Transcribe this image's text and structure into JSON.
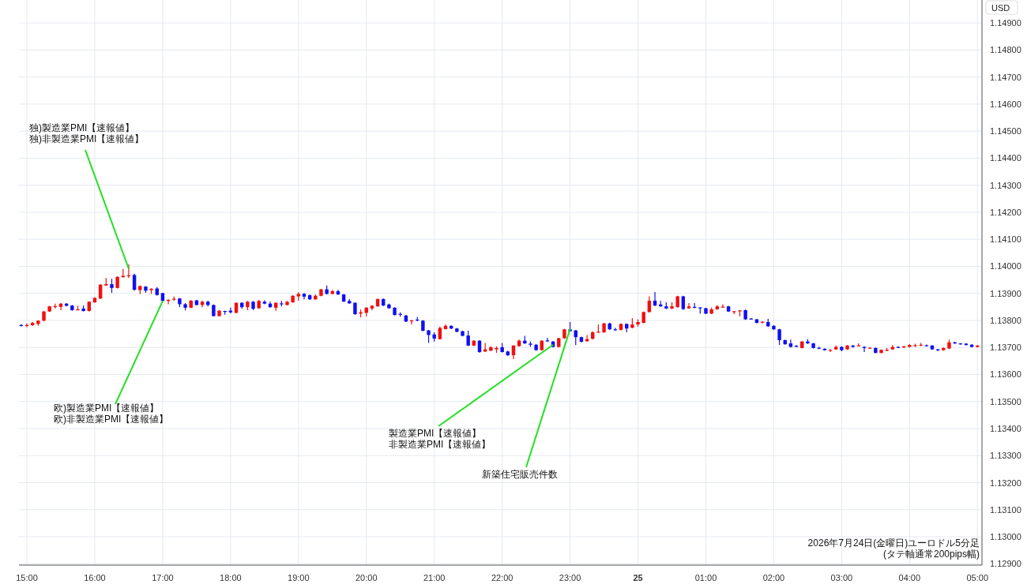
{
  "chart_data": {
    "type": "candlestick",
    "ylabel": "USD",
    "xlim": [
      "2026-07-24T14:53",
      "2026-07-25T05:04"
    ],
    "ylim": [
      1.12895,
      1.14985
    ],
    "xticks": [
      {
        "value": "2026-07-24T15:00",
        "label": "15:00"
      },
      {
        "value": "2026-07-24T16:00",
        "label": "16:00"
      },
      {
        "value": "2026-07-24T17:00",
        "label": "17:00"
      },
      {
        "value": "2026-07-24T18:00",
        "label": "18:00"
      },
      {
        "value": "2026-07-24T19:00",
        "label": "19:00"
      },
      {
        "value": "2026-07-24T20:00",
        "label": "20:00"
      },
      {
        "value": "2026-07-24T21:00",
        "label": "21:00"
      },
      {
        "value": "2026-07-24T22:00",
        "label": "22:00"
      },
      {
        "value": "2026-07-24T23:00",
        "label": "23:00"
      },
      {
        "value": "2026-07-25T00:00",
        "label": "25"
      },
      {
        "value": "2026-07-25T01:00",
        "label": "01:00"
      },
      {
        "value": "2026-07-25T02:00",
        "label": "02:00"
      },
      {
        "value": "2026-07-25T03:00",
        "label": "03:00"
      },
      {
        "value": "2026-07-25T04:00",
        "label": "04:00"
      },
      {
        "value": "2026-07-25T05:00",
        "label": "05:00"
      }
    ],
    "yticks": [
      {
        "value": 1.129,
        "label": "1.12900"
      },
      {
        "value": 1.13,
        "label": "1.13000"
      },
      {
        "value": 1.131,
        "label": "1.13100"
      },
      {
        "value": 1.132,
        "label": "1.13200"
      },
      {
        "value": 1.133,
        "label": "1.13300"
      },
      {
        "value": 1.134,
        "label": "1.13400"
      },
      {
        "value": 1.135,
        "label": "1.13500"
      },
      {
        "value": 1.136,
        "label": "1.13600"
      },
      {
        "value": 1.137,
        "label": "1.13700"
      },
      {
        "value": 1.138,
        "label": "1.13800"
      },
      {
        "value": 1.139,
        "label": "1.13900"
      },
      {
        "value": 1.14,
        "label": "1.14000"
      },
      {
        "value": 1.141,
        "label": "1.14100"
      },
      {
        "value": 1.142,
        "label": "1.14200"
      },
      {
        "value": 1.143,
        "label": "1.14300"
      },
      {
        "value": 1.144,
        "label": "1.14400"
      },
      {
        "value": 1.145,
        "label": "1.14500"
      },
      {
        "value": 1.146,
        "label": "1.14600"
      },
      {
        "value": 1.147,
        "label": "1.14700"
      },
      {
        "value": 1.148,
        "label": "1.14800"
      },
      {
        "value": 1.149,
        "label": "1.14900"
      }
    ],
    "grid": true,
    "annotations": [
      {
        "text": "独)製造業PMI【速報値】独)非製造業PMI【速報値】",
        "x": "2026-07-24T16:30",
        "y": 1.13991
      },
      {
        "text": "欧)製造業PMI【速報値】欧)非製造業PMI【速報値】",
        "x": "2026-07-24T17:00",
        "y": 1.13872
      },
      {
        "text": "製造業PMI【速報値】非製造業PMI【速報値】",
        "x": "2026-07-24T22:45",
        "y": 1.1371
      },
      {
        "text": "新築住宅販売件数",
        "x": "2026-07-24T23:00",
        "y": 1.13768
      },
      "2026年7月24日(金曜日)ユーロドル5分足\n(タテ軸通常200pips幅)"
    ],
    "x": [
      "2026-07-24T14:55",
      "2026-07-24T15:00",
      "2026-07-24T15:05",
      "2026-07-24T15:10",
      "2026-07-24T15:15",
      "2026-07-24T15:20",
      "2026-07-24T15:25",
      "2026-07-24T15:30",
      "2026-07-24T15:35",
      "2026-07-24T15:40",
      "2026-07-24T15:45",
      "2026-07-24T15:50",
      "2026-07-24T15:55",
      "2026-07-24T16:00",
      "2026-07-24T16:05",
      "2026-07-24T16:10",
      "2026-07-24T16:15",
      "2026-07-24T16:20",
      "2026-07-24T16:25",
      "2026-07-24T16:30",
      "2026-07-24T16:35",
      "2026-07-24T16:40",
      "2026-07-24T16:45",
      "2026-07-24T16:50",
      "2026-07-24T16:55",
      "2026-07-24T17:00",
      "2026-07-24T17:05",
      "2026-07-24T17:10",
      "2026-07-24T17:15",
      "2026-07-24T17:20",
      "2026-07-24T17:25",
      "2026-07-24T17:30",
      "2026-07-24T17:35",
      "2026-07-24T17:40",
      "2026-07-24T17:45",
      "2026-07-24T17:50",
      "2026-07-24T17:55",
      "2026-07-24T18:00",
      "2026-07-24T18:05",
      "2026-07-24T18:10",
      "2026-07-24T18:15",
      "2026-07-24T18:20",
      "2026-07-24T18:25",
      "2026-07-24T18:30",
      "2026-07-24T18:35",
      "2026-07-24T18:40",
      "2026-07-24T18:45",
      "2026-07-24T18:50",
      "2026-07-24T18:55",
      "2026-07-24T19:00",
      "2026-07-24T19:05",
      "2026-07-24T19:10",
      "2026-07-24T19:15",
      "2026-07-24T19:20",
      "2026-07-24T19:25",
      "2026-07-24T19:30",
      "2026-07-24T19:35",
      "2026-07-24T19:40",
      "2026-07-24T19:45",
      "2026-07-24T19:50",
      "2026-07-24T19:55",
      "2026-07-24T20:00",
      "2026-07-24T20:05",
      "2026-07-24T20:10",
      "2026-07-24T20:15",
      "2026-07-24T20:20",
      "2026-07-24T20:25",
      "2026-07-24T20:30",
      "2026-07-24T20:35",
      "2026-07-24T20:40",
      "2026-07-24T20:45",
      "2026-07-24T20:50",
      "2026-07-24T20:55",
      "2026-07-24T21:00",
      "2026-07-24T21:05",
      "2026-07-24T21:10",
      "2026-07-24T21:15",
      "2026-07-24T21:20",
      "2026-07-24T21:25",
      "2026-07-24T21:30",
      "2026-07-24T21:35",
      "2026-07-24T21:40",
      "2026-07-24T21:45",
      "2026-07-24T21:50",
      "2026-07-24T21:55",
      "2026-07-24T22:00",
      "2026-07-24T22:05",
      "2026-07-24T22:10",
      "2026-07-24T22:15",
      "2026-07-24T22:20",
      "2026-07-24T22:25",
      "2026-07-24T22:30",
      "2026-07-24T22:35",
      "2026-07-24T22:40",
      "2026-07-24T22:45",
      "2026-07-24T22:50",
      "2026-07-24T22:55",
      "2026-07-24T23:00",
      "2026-07-24T23:05",
      "2026-07-24T23:10",
      "2026-07-24T23:15",
      "2026-07-24T23:20",
      "2026-07-24T23:25",
      "2026-07-24T23:30",
      "2026-07-24T23:35",
      "2026-07-24T23:40",
      "2026-07-24T23:45",
      "2026-07-24T23:50",
      "2026-07-24T23:55",
      "2026-07-25T00:00",
      "2026-07-25T00:05",
      "2026-07-25T00:10",
      "2026-07-25T00:15",
      "2026-07-25T00:20",
      "2026-07-25T00:25",
      "2026-07-25T00:30",
      "2026-07-25T00:35",
      "2026-07-25T00:40",
      "2026-07-25T00:45",
      "2026-07-25T00:50",
      "2026-07-25T00:55",
      "2026-07-25T01:00",
      "2026-07-25T01:05",
      "2026-07-25T01:10",
      "2026-07-25T01:15",
      "2026-07-25T01:20",
      "2026-07-25T01:25",
      "2026-07-25T01:30",
      "2026-07-25T01:35",
      "2026-07-25T01:40",
      "2026-07-25T01:45",
      "2026-07-25T01:50",
      "2026-07-25T01:55",
      "2026-07-25T02:00",
      "2026-07-25T02:05",
      "2026-07-25T02:10",
      "2026-07-25T02:15",
      "2026-07-25T02:20",
      "2026-07-25T02:25",
      "2026-07-25T02:30",
      "2026-07-25T02:35",
      "2026-07-25T02:40",
      "2026-07-25T02:45",
      "2026-07-25T02:50",
      "2026-07-25T02:55",
      "2026-07-25T03:00",
      "2026-07-25T03:05",
      "2026-07-25T03:10",
      "2026-07-25T03:15",
      "2026-07-25T03:20",
      "2026-07-25T03:25",
      "2026-07-25T03:30",
      "2026-07-25T03:35",
      "2026-07-25T03:40",
      "2026-07-25T03:45",
      "2026-07-25T03:50",
      "2026-07-25T03:55",
      "2026-07-25T04:00",
      "2026-07-25T04:05",
      "2026-07-25T04:10",
      "2026-07-25T04:15",
      "2026-07-25T04:20",
      "2026-07-25T04:25",
      "2026-07-25T04:30",
      "2026-07-25T04:35",
      "2026-07-25T04:40",
      "2026-07-25T04:45",
      "2026-07-25T04:50",
      "2026-07-25T04:55",
      "2026-07-25T05:00"
    ],
    "ohlc": [
      [
        1.13783,
        1.13786,
        1.13777,
        1.1378
      ],
      [
        1.13781,
        1.13789,
        1.13775,
        1.13783
      ],
      [
        1.13782,
        1.13794,
        1.1378,
        1.13791
      ],
      [
        1.13787,
        1.138,
        1.1378,
        1.13799
      ],
      [
        1.13799,
        1.13835,
        1.13797,
        1.13833
      ],
      [
        1.13833,
        1.13854,
        1.13831,
        1.13852
      ],
      [
        1.13851,
        1.13862,
        1.13844,
        1.13853
      ],
      [
        1.1385,
        1.13864,
        1.13838,
        1.13862
      ],
      [
        1.13862,
        1.13864,
        1.13852,
        1.13854
      ],
      [
        1.13855,
        1.13857,
        1.13836,
        1.13838
      ],
      [
        1.13839,
        1.13854,
        1.13837,
        1.13841
      ],
      [
        1.13844,
        1.13855,
        1.13833,
        1.13835
      ],
      [
        1.13835,
        1.13871,
        1.13833,
        1.13869
      ],
      [
        1.13867,
        1.13886,
        1.13865,
        1.13883
      ],
      [
        1.13881,
        1.13934,
        1.13879,
        1.13932
      ],
      [
        1.13929,
        1.13957,
        1.13928,
        1.13934
      ],
      [
        1.13934,
        1.13954,
        1.13902,
        1.1392
      ],
      [
        1.1392,
        1.13963,
        1.13918,
        1.13961
      ],
      [
        1.1396,
        1.1399,
        1.13958,
        1.13965
      ],
      [
        1.13965,
        1.14007,
        1.13957,
        1.13967
      ],
      [
        1.13968,
        1.13973,
        1.13911,
        1.13913
      ],
      [
        1.13912,
        1.13929,
        1.13898,
        1.13927
      ],
      [
        1.13925,
        1.13927,
        1.13902,
        1.1391
      ],
      [
        1.13912,
        1.13919,
        1.13898,
        1.13917
      ],
      [
        1.13918,
        1.13923,
        1.13892,
        1.13894
      ],
      [
        1.13901,
        1.13902,
        1.1387,
        1.13872
      ],
      [
        1.13872,
        1.13878,
        1.1386,
        1.13876
      ],
      [
        1.13878,
        1.13888,
        1.13873,
        1.1388
      ],
      [
        1.13881,
        1.13883,
        1.13849,
        1.1386
      ],
      [
        1.1386,
        1.13864,
        1.13837,
        1.13847
      ],
      [
        1.13847,
        1.13875,
        1.13845,
        1.13873
      ],
      [
        1.13874,
        1.13876,
        1.13855,
        1.13857
      ],
      [
        1.13857,
        1.13873,
        1.13849,
        1.13869
      ],
      [
        1.13869,
        1.13873,
        1.13852,
        1.13857
      ],
      [
        1.13857,
        1.13859,
        1.13815,
        1.13816
      ],
      [
        1.13816,
        1.13838,
        1.13815,
        1.13836
      ],
      [
        1.13835,
        1.13836,
        1.13821,
        1.13832
      ],
      [
        1.13836,
        1.13847,
        1.13826,
        1.1383
      ],
      [
        1.13828,
        1.13867,
        1.13826,
        1.13865
      ],
      [
        1.13865,
        1.13867,
        1.13843,
        1.13849
      ],
      [
        1.13849,
        1.13872,
        1.13838,
        1.13869
      ],
      [
        1.13869,
        1.13872,
        1.13838,
        1.13843
      ],
      [
        1.13845,
        1.13876,
        1.13843,
        1.13872
      ],
      [
        1.13869,
        1.13874,
        1.1386,
        1.13862
      ],
      [
        1.13862,
        1.13869,
        1.13847,
        1.13849
      ],
      [
        1.13847,
        1.13867,
        1.13836,
        1.13865
      ],
      [
        1.13863,
        1.13872,
        1.13852,
        1.1386
      ],
      [
        1.13857,
        1.13872,
        1.13855,
        1.13869
      ],
      [
        1.13867,
        1.13893,
        1.13865,
        1.13891
      ],
      [
        1.13889,
        1.13905,
        1.13873,
        1.13898
      ],
      [
        1.13898,
        1.13901,
        1.13878,
        1.13888
      ],
      [
        1.13893,
        1.13896,
        1.13876,
        1.13878
      ],
      [
        1.13878,
        1.13896,
        1.13876,
        1.13891
      ],
      [
        1.13891,
        1.13917,
        1.13889,
        1.13915
      ],
      [
        1.13915,
        1.13929,
        1.13896,
        1.13898
      ],
      [
        1.13898,
        1.13913,
        1.13896,
        1.13908
      ],
      [
        1.13908,
        1.13913,
        1.13894,
        1.13896
      ],
      [
        1.13896,
        1.13898,
        1.13868,
        1.1387
      ],
      [
        1.13872,
        1.13879,
        1.13862,
        1.13863
      ],
      [
        1.13865,
        1.13867,
        1.13821,
        1.13823
      ],
      [
        1.13825,
        1.1384,
        1.13811,
        1.1383
      ],
      [
        1.13828,
        1.13849,
        1.13815,
        1.13847
      ],
      [
        1.13844,
        1.13857,
        1.13838,
        1.13854
      ],
      [
        1.13852,
        1.13881,
        1.1385,
        1.13879
      ],
      [
        1.13879,
        1.13881,
        1.13853,
        1.13855
      ],
      [
        1.13859,
        1.13862,
        1.13843,
        1.13845
      ],
      [
        1.13847,
        1.13849,
        1.13818,
        1.1382
      ],
      [
        1.13824,
        1.1383,
        1.13814,
        1.13822
      ],
      [
        1.13818,
        1.1382,
        1.13794,
        1.13796
      ],
      [
        1.13798,
        1.13802,
        1.13785,
        1.138
      ],
      [
        1.13803,
        1.13812,
        1.13797,
        1.13801
      ],
      [
        1.13799,
        1.13801,
        1.1376,
        1.13762
      ],
      [
        1.13763,
        1.13765,
        1.13717,
        1.13746
      ],
      [
        1.13748,
        1.13756,
        1.13722,
        1.13733
      ],
      [
        1.13731,
        1.13777,
        1.13729,
        1.13772
      ],
      [
        1.13768,
        1.13785,
        1.13766,
        1.1378
      ],
      [
        1.1378,
        1.13782,
        1.13768,
        1.1377
      ],
      [
        1.1377,
        1.13772,
        1.13756,
        1.13758
      ],
      [
        1.1376,
        1.13762,
        1.13741,
        1.13743
      ],
      [
        1.13744,
        1.13762,
        1.13705,
        1.13707
      ],
      [
        1.13707,
        1.13727,
        1.13705,
        1.13725
      ],
      [
        1.13725,
        1.13727,
        1.1368,
        1.13683
      ],
      [
        1.13685,
        1.13717,
        1.13683,
        1.13693
      ],
      [
        1.13688,
        1.13704,
        1.13687,
        1.13701
      ],
      [
        1.13693,
        1.13704,
        1.1368,
        1.13698
      ],
      [
        1.13701,
        1.13717,
        1.13682,
        1.13683
      ],
      [
        1.13685,
        1.13688,
        1.13669,
        1.13671
      ],
      [
        1.13671,
        1.13709,
        1.13657,
        1.13707
      ],
      [
        1.13705,
        1.13729,
        1.13703,
        1.13725
      ],
      [
        1.13725,
        1.13743,
        1.13713,
        1.13715
      ],
      [
        1.13714,
        1.13722,
        1.13702,
        1.1371
      ],
      [
        1.1371,
        1.13712,
        1.13688,
        1.1369
      ],
      [
        1.1369,
        1.13727,
        1.13688,
        1.13725
      ],
      [
        1.13726,
        1.13736,
        1.1372,
        1.13723
      ],
      [
        1.13722,
        1.13724,
        1.137,
        1.13702
      ],
      [
        1.13702,
        1.13736,
        1.137,
        1.13734
      ],
      [
        1.13734,
        1.13769,
        1.13732,
        1.13767
      ],
      [
        1.13767,
        1.13794,
        1.13758,
        1.1376
      ],
      [
        1.13763,
        1.13765,
        1.13709,
        1.13738
      ],
      [
        1.13738,
        1.1374,
        1.13719,
        1.13721
      ],
      [
        1.13723,
        1.13746,
        1.13721,
        1.13731
      ],
      [
        1.13732,
        1.1376,
        1.1373,
        1.13756
      ],
      [
        1.13757,
        1.13785,
        1.13755,
        1.13758
      ],
      [
        1.13756,
        1.13791,
        1.13754,
        1.13789
      ],
      [
        1.13789,
        1.13791,
        1.13765,
        1.13767
      ],
      [
        1.13767,
        1.13773,
        1.13762,
        1.13764
      ],
      [
        1.13765,
        1.13789,
        1.13763,
        1.13787
      ],
      [
        1.13787,
        1.13789,
        1.13756,
        1.1377
      ],
      [
        1.13773,
        1.13809,
        1.13771,
        1.13785
      ],
      [
        1.13785,
        1.13804,
        1.13777,
        1.13794
      ],
      [
        1.13791,
        1.13833,
        1.13789,
        1.13831
      ],
      [
        1.13831,
        1.13889,
        1.13829,
        1.13873
      ],
      [
        1.13873,
        1.13905,
        1.13853,
        1.13855
      ],
      [
        1.13859,
        1.13872,
        1.1385,
        1.13852
      ],
      [
        1.13852,
        1.13867,
        1.13842,
        1.13844
      ],
      [
        1.13844,
        1.13867,
        1.13842,
        1.13852
      ],
      [
        1.13849,
        1.13891,
        1.13847,
        1.13889
      ],
      [
        1.13889,
        1.13891,
        1.13839,
        1.13842
      ],
      [
        1.13845,
        1.13864,
        1.13843,
        1.13852
      ],
      [
        1.1385,
        1.13864,
        1.13845,
        1.13847
      ],
      [
        1.13848,
        1.13849,
        1.13825,
        1.13845
      ],
      [
        1.13845,
        1.13847,
        1.13823,
        1.13825
      ],
      [
        1.13825,
        1.13847,
        1.13823,
        1.13841
      ],
      [
        1.13841,
        1.13857,
        1.13839,
        1.13852
      ],
      [
        1.13849,
        1.1386,
        1.13847,
        1.13851
      ],
      [
        1.13852,
        1.13854,
        1.13831,
        1.13833
      ],
      [
        1.13832,
        1.13835,
        1.13823,
        1.13834
      ],
      [
        1.13835,
        1.13838,
        1.13815,
        1.13837
      ],
      [
        1.13838,
        1.1384,
        1.13802,
        1.13804
      ],
      [
        1.13807,
        1.13809,
        1.13803,
        1.13805
      ],
      [
        1.13804,
        1.13806,
        1.13789,
        1.13791
      ],
      [
        1.13793,
        1.13797,
        1.13789,
        1.13795
      ],
      [
        1.13794,
        1.13806,
        1.13776,
        1.13778
      ],
      [
        1.1378,
        1.13782,
        1.13765,
        1.13767
      ],
      [
        1.13767,
        1.13769,
        1.13709,
        1.13727
      ],
      [
        1.13727,
        1.13729,
        1.1371,
        1.13712
      ],
      [
        1.13715,
        1.13729,
        1.137,
        1.13702
      ],
      [
        1.13706,
        1.13709,
        1.13701,
        1.13704
      ],
      [
        1.13698,
        1.13724,
        1.13696,
        1.13722
      ],
      [
        1.13722,
        1.13731,
        1.13713,
        1.13715
      ],
      [
        1.13715,
        1.13717,
        1.13696,
        1.13698
      ],
      [
        1.13699,
        1.13702,
        1.13693,
        1.13697
      ],
      [
        1.13695,
        1.13697,
        1.13688,
        1.1369
      ],
      [
        1.13689,
        1.13693,
        1.13683,
        1.13691
      ],
      [
        1.13693,
        1.13707,
        1.13691,
        1.13702
      ],
      [
        1.13702,
        1.13704,
        1.13686,
        1.1369
      ],
      [
        1.13693,
        1.13709,
        1.13691,
        1.13707
      ],
      [
        1.13707,
        1.13709,
        1.137,
        1.13702
      ],
      [
        1.13706,
        1.13715,
        1.13704,
        1.13708
      ],
      [
        1.13702,
        1.13704,
        1.13683,
        1.13698
      ],
      [
        1.13697,
        1.137,
        1.13695,
        1.13699
      ],
      [
        1.13698,
        1.137,
        1.13678,
        1.1368
      ],
      [
        1.1368,
        1.13693,
        1.13678,
        1.13691
      ],
      [
        1.13689,
        1.13698,
        1.13686,
        1.13691
      ],
      [
        1.13693,
        1.13709,
        1.13691,
        1.13702
      ],
      [
        1.13702,
        1.13704,
        1.13698,
        1.137
      ],
      [
        1.137,
        1.13706,
        1.13698,
        1.13704
      ],
      [
        1.13702,
        1.13712,
        1.137,
        1.13709
      ],
      [
        1.13706,
        1.13714,
        1.13702,
        1.13708
      ],
      [
        1.13708,
        1.13717,
        1.13705,
        1.1371
      ],
      [
        1.13708,
        1.13711,
        1.13704,
        1.13706
      ],
      [
        1.13707,
        1.13709,
        1.13691,
        1.13693
      ],
      [
        1.13693,
        1.13695,
        1.13686,
        1.13691
      ],
      [
        1.1369,
        1.137,
        1.13688,
        1.13698
      ],
      [
        1.13696,
        1.13729,
        1.13694,
        1.13719
      ],
      [
        1.13719,
        1.13721,
        1.13713,
        1.13715
      ],
      [
        1.13715,
        1.13716,
        1.1371,
        1.13713
      ],
      [
        1.13714,
        1.13716,
        1.13707,
        1.13709
      ],
      [
        1.1371,
        1.13712,
        1.137,
        1.13702
      ],
      [
        1.13702,
        1.13709,
        1.137,
        1.13707
      ]
    ],
    "colors": [
      "#1010f0",
      "#f01010",
      "#f01010",
      "#f01010",
      "#f01010",
      "#f01010",
      "#f01010",
      "#f01010",
      "#1010f0",
      "#1010f0",
      "#f01010",
      "#1010f0",
      "#f01010",
      "#f01010",
      "#f01010",
      "#f01010",
      "#1010f0",
      "#f01010",
      "#f01010",
      "#f01010",
      "#1010f0",
      "#f01010",
      "#1010f0",
      "#f01010",
      "#1010f0",
      "#1010f0",
      "#f01010",
      "#f01010",
      "#1010f0",
      "#1010f0",
      "#f01010",
      "#1010f0",
      "#f01010",
      "#1010f0",
      "#1010f0",
      "#f01010",
      "#1010f0",
      "#1010f0",
      "#f01010",
      "#1010f0",
      "#f01010",
      "#1010f0",
      "#f01010",
      "#1010f0",
      "#1010f0",
      "#f01010",
      "#1010f0",
      "#f01010",
      "#f01010",
      "#f01010",
      "#1010f0",
      "#1010f0",
      "#f01010",
      "#f01010",
      "#1010f0",
      "#f01010",
      "#1010f0",
      "#1010f0",
      "#1010f0",
      "#1010f0",
      "#f01010",
      "#f01010",
      "#f01010",
      "#f01010",
      "#1010f0",
      "#1010f0",
      "#1010f0",
      "#1010f0",
      "#1010f0",
      "#f01010",
      "#1010f0",
      "#1010f0",
      "#1010f0",
      "#1010f0",
      "#f01010",
      "#f01010",
      "#1010f0",
      "#1010f0",
      "#1010f0",
      "#1010f0",
      "#f01010",
      "#1010f0",
      "#f01010",
      "#f01010",
      "#f01010",
      "#1010f0",
      "#1010f0",
      "#f01010",
      "#f01010",
      "#1010f0",
      "#1010f0",
      "#1010f0",
      "#f01010",
      "#1010f0",
      "#1010f0",
      "#f01010",
      "#f01010",
      "#1010f0",
      "#1010f0",
      "#1010f0",
      "#f01010",
      "#f01010",
      "#f01010",
      "#f01010",
      "#1010f0",
      "#1010f0",
      "#f01010",
      "#1010f0",
      "#f01010",
      "#f01010",
      "#f01010",
      "#f01010",
      "#1010f0",
      "#1010f0",
      "#1010f0",
      "#f01010",
      "#f01010",
      "#1010f0",
      "#f01010",
      "#1010f0",
      "#1010f0",
      "#1010f0",
      "#f01010",
      "#f01010",
      "#f01010",
      "#1010f0",
      "#f01010",
      "#f01010",
      "#1010f0",
      "#1010f0",
      "#1010f0",
      "#f01010",
      "#1010f0",
      "#1010f0",
      "#1010f0",
      "#1010f0",
      "#1010f0",
      "#1010f0",
      "#f01010",
      "#1010f0",
      "#1010f0",
      "#1010f0",
      "#1010f0",
      "#f01010",
      "#f01010",
      "#1010f0",
      "#f01010",
      "#1010f0",
      "#f01010",
      "#1010f0",
      "#f01010",
      "#1010f0",
      "#f01010",
      "#f01010",
      "#f01010",
      "#1010f0",
      "#f01010",
      "#f01010",
      "#f01010",
      "#f01010",
      "#1010f0",
      "#1010f0",
      "#1010f0",
      "#f01010",
      "#f01010",
      "#1010f0",
      "#1010f0",
      "#1010f0",
      "#1010f0",
      "#f01010"
    ]
  }
}
